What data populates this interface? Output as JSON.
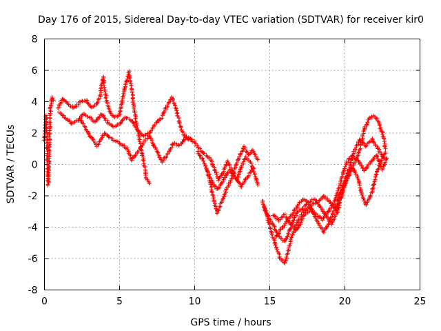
{
  "chart_data": {
    "type": "scatter",
    "title": "Day 176 of 2015, Sidereal Day-to-day VTEC variation (SDTVAR) for receiver kir0",
    "xlabel": "GPS time / hours",
    "ylabel": "SDTVAR / TECUs",
    "xlim": [
      0,
      25
    ],
    "ylim": [
      -8,
      8
    ],
    "xticks": [
      0,
      5,
      10,
      15,
      20,
      25
    ],
    "yticks": [
      -8,
      -6,
      -4,
      -2,
      0,
      2,
      4,
      6,
      8
    ],
    "grid": true,
    "marker": "+",
    "series": [
      {
        "name": "kir0",
        "color": "#ff0000",
        "tracks": [
          [
            [
              0.0,
              1.6
            ],
            [
              0.05,
              2.5
            ],
            [
              0.1,
              3.1
            ],
            [
              0.15,
              2.0
            ],
            [
              0.2,
              0.2
            ],
            [
              0.25,
              -1.3
            ],
            [
              0.3,
              0.1
            ],
            [
              0.4,
              3.6
            ],
            [
              0.5,
              4.3
            ],
            [
              0.6,
              4.1
            ]
          ],
          [
            [
              0.9,
              3.6
            ],
            [
              1.2,
              4.2
            ],
            [
              1.6,
              3.8
            ],
            [
              2.0,
              3.6
            ],
            [
              2.4,
              4.0
            ],
            [
              2.8,
              4.1
            ],
            [
              3.1,
              3.6
            ],
            [
              3.4,
              3.8
            ],
            [
              3.7,
              4.3
            ],
            [
              3.9,
              5.6
            ],
            [
              4.1,
              4.2
            ],
            [
              4.4,
              3.2
            ],
            [
              4.7,
              3.0
            ],
            [
              5.0,
              3.2
            ],
            [
              5.2,
              4.2
            ],
            [
              5.4,
              5.0
            ],
            [
              5.6,
              5.9
            ],
            [
              5.8,
              4.8
            ],
            [
              6.0,
              3.4
            ],
            [
              6.2,
              2.2
            ],
            [
              6.4,
              1.2
            ],
            [
              6.6,
              0.2
            ],
            [
              6.8,
              -0.9
            ],
            [
              7.0,
              -1.2
            ]
          ],
          [
            [
              1.0,
              3.3
            ],
            [
              1.4,
              3.0
            ],
            [
              1.8,
              2.6
            ],
            [
              2.2,
              2.8
            ],
            [
              2.6,
              3.2
            ],
            [
              3.0,
              3.0
            ],
            [
              3.4,
              2.7
            ],
            [
              3.8,
              3.2
            ],
            [
              4.2,
              2.7
            ],
            [
              4.6,
              2.4
            ],
            [
              5.0,
              2.6
            ],
            [
              5.4,
              3.0
            ],
            [
              5.8,
              2.8
            ],
            [
              6.2,
              2.2
            ],
            [
              6.6,
              1.8
            ],
            [
              7.0,
              2.0
            ],
            [
              7.4,
              2.6
            ],
            [
              7.8,
              3.0
            ],
            [
              8.2,
              3.8
            ],
            [
              8.5,
              4.3
            ],
            [
              8.8,
              3.4
            ],
            [
              9.2,
              2.0
            ],
            [
              9.6,
              1.6
            ]
          ],
          [
            [
              2.4,
              2.9
            ],
            [
              2.8,
              2.2
            ],
            [
              3.2,
              1.6
            ],
            [
              3.5,
              1.2
            ],
            [
              4.0,
              2.0
            ],
            [
              4.5,
              1.6
            ],
            [
              5.0,
              1.4
            ],
            [
              5.5,
              1.0
            ],
            [
              5.8,
              0.3
            ],
            [
              6.2,
              0.8
            ],
            [
              6.6,
              1.4
            ],
            [
              7.0,
              1.8
            ],
            [
              7.4,
              1.0
            ],
            [
              7.8,
              0.2
            ],
            [
              8.2,
              0.6
            ],
            [
              8.6,
              1.4
            ],
            [
              9.0,
              1.2
            ],
            [
              9.4,
              1.7
            ],
            [
              9.8,
              1.6
            ]
          ],
          [
            [
              9.6,
              1.7
            ],
            [
              10.0,
              1.4
            ],
            [
              10.5,
              0.8
            ],
            [
              11.0,
              0.4
            ],
            [
              11.3,
              -0.2
            ],
            [
              11.6,
              -1.0
            ],
            [
              11.9,
              -0.5
            ],
            [
              12.2,
              0.2
            ],
            [
              12.5,
              -0.4
            ],
            [
              12.8,
              -1.0
            ],
            [
              13.1,
              -0.2
            ],
            [
              13.4,
              0.5
            ],
            [
              13.7,
              0.2
            ],
            [
              14.0,
              -0.6
            ],
            [
              14.2,
              -1.3
            ]
          ],
          [
            [
              10.2,
              0.8
            ],
            [
              10.6,
              0.2
            ],
            [
              10.9,
              -0.6
            ],
            [
              11.1,
              -1.4
            ],
            [
              11.3,
              -2.4
            ],
            [
              11.5,
              -3.1
            ],
            [
              11.8,
              -2.4
            ],
            [
              12.1,
              -1.6
            ],
            [
              12.4,
              -1.0
            ],
            [
              12.7,
              -0.2
            ],
            [
              13.0,
              0.6
            ],
            [
              13.3,
              1.1
            ],
            [
              13.6,
              0.6
            ],
            [
              13.9,
              0.9
            ],
            [
              14.2,
              0.3
            ]
          ],
          [
            [
              10.8,
              -0.3
            ],
            [
              11.1,
              -1.0
            ],
            [
              11.5,
              -1.6
            ],
            [
              11.9,
              -1.0
            ],
            [
              12.3,
              -0.4
            ],
            [
              12.7,
              -0.8
            ],
            [
              13.1,
              -1.4
            ],
            [
              13.5,
              -0.8
            ],
            [
              13.9,
              -0.2
            ]
          ],
          [
            [
              14.5,
              -2.3
            ],
            [
              14.8,
              -3.2
            ],
            [
              15.1,
              -4.3
            ],
            [
              15.4,
              -5.2
            ],
            [
              15.7,
              -6.0
            ],
            [
              16.0,
              -6.3
            ],
            [
              16.3,
              -5.2
            ],
            [
              16.6,
              -4.2
            ],
            [
              16.9,
              -3.6
            ],
            [
              17.2,
              -3.1
            ],
            [
              17.5,
              -2.8
            ],
            [
              17.8,
              -2.6
            ],
            [
              18.2,
              -2.4
            ],
            [
              18.6,
              -2.0
            ],
            [
              19.0,
              -2.4
            ],
            [
              19.4,
              -2.9
            ],
            [
              19.8,
              -2.0
            ],
            [
              20.1,
              -0.9
            ],
            [
              20.4,
              -0.3
            ],
            [
              20.7,
              0.2
            ],
            [
              21.0,
              1.0
            ],
            [
              21.3,
              2.3
            ],
            [
              21.6,
              2.9
            ],
            [
              21.9,
              3.1
            ],
            [
              22.2,
              2.8
            ],
            [
              22.5,
              2.0
            ],
            [
              22.7,
              1.0
            ]
          ],
          [
            [
              14.6,
              -2.7
            ],
            [
              15.0,
              -3.5
            ],
            [
              15.3,
              -4.0
            ],
            [
              15.6,
              -4.6
            ],
            [
              16.0,
              -4.9
            ],
            [
              16.3,
              -4.3
            ],
            [
              16.6,
              -3.5
            ],
            [
              16.9,
              -3.0
            ],
            [
              17.2,
              -2.8
            ],
            [
              17.6,
              -2.4
            ],
            [
              18.0,
              -2.2
            ],
            [
              18.4,
              -2.8
            ],
            [
              18.8,
              -3.3
            ],
            [
              19.1,
              -3.8
            ],
            [
              19.5,
              -3.0
            ],
            [
              19.8,
              -1.8
            ],
            [
              20.2,
              -0.8
            ],
            [
              20.5,
              -0.2
            ],
            [
              20.8,
              -0.7
            ],
            [
              21.1,
              -1.8
            ],
            [
              21.4,
              -2.6
            ],
            [
              21.8,
              -1.8
            ],
            [
              22.1,
              -0.6
            ],
            [
              22.4,
              0.2
            ],
            [
              22.7,
              0.8
            ]
          ],
          [
            [
              15.2,
              -3.2
            ],
            [
              15.6,
              -3.6
            ],
            [
              16.0,
              -3.2
            ],
            [
              16.4,
              -3.8
            ],
            [
              16.8,
              -4.2
            ],
            [
              17.1,
              -3.6
            ],
            [
              17.4,
              -3.1
            ],
            [
              17.8,
              -2.9
            ],
            [
              18.1,
              -3.2
            ],
            [
              18.5,
              -3.5
            ],
            [
              18.9,
              -3.0
            ],
            [
              19.3,
              -2.4
            ],
            [
              19.7,
              -1.2
            ],
            [
              20.1,
              0.1
            ],
            [
              20.5,
              0.6
            ],
            [
              20.9,
              0.2
            ],
            [
              21.3,
              -0.4
            ],
            [
              21.7,
              0.1
            ],
            [
              22.1,
              0.6
            ],
            [
              22.5,
              -0.3
            ],
            [
              22.8,
              0.4
            ]
          ],
          [
            [
              15.4,
              -4.6
            ],
            [
              15.8,
              -4.1
            ],
            [
              16.2,
              -3.6
            ],
            [
              16.6,
              -3.0
            ],
            [
              17.0,
              -2.4
            ],
            [
              17.3,
              -2.2
            ],
            [
              17.6,
              -2.5
            ],
            [
              18.0,
              -3.3
            ],
            [
              18.3,
              -3.9
            ],
            [
              18.6,
              -4.3
            ],
            [
              19.0,
              -3.6
            ],
            [
              19.4,
              -2.6
            ],
            [
              19.8,
              -1.5
            ],
            [
              20.2,
              -0.5
            ],
            [
              20.6,
              0.8
            ],
            [
              21.0,
              1.6
            ],
            [
              21.4,
              1.2
            ],
            [
              21.8,
              1.6
            ],
            [
              22.2,
              1.0
            ],
            [
              22.6,
              0.4
            ]
          ]
        ]
      }
    ]
  }
}
